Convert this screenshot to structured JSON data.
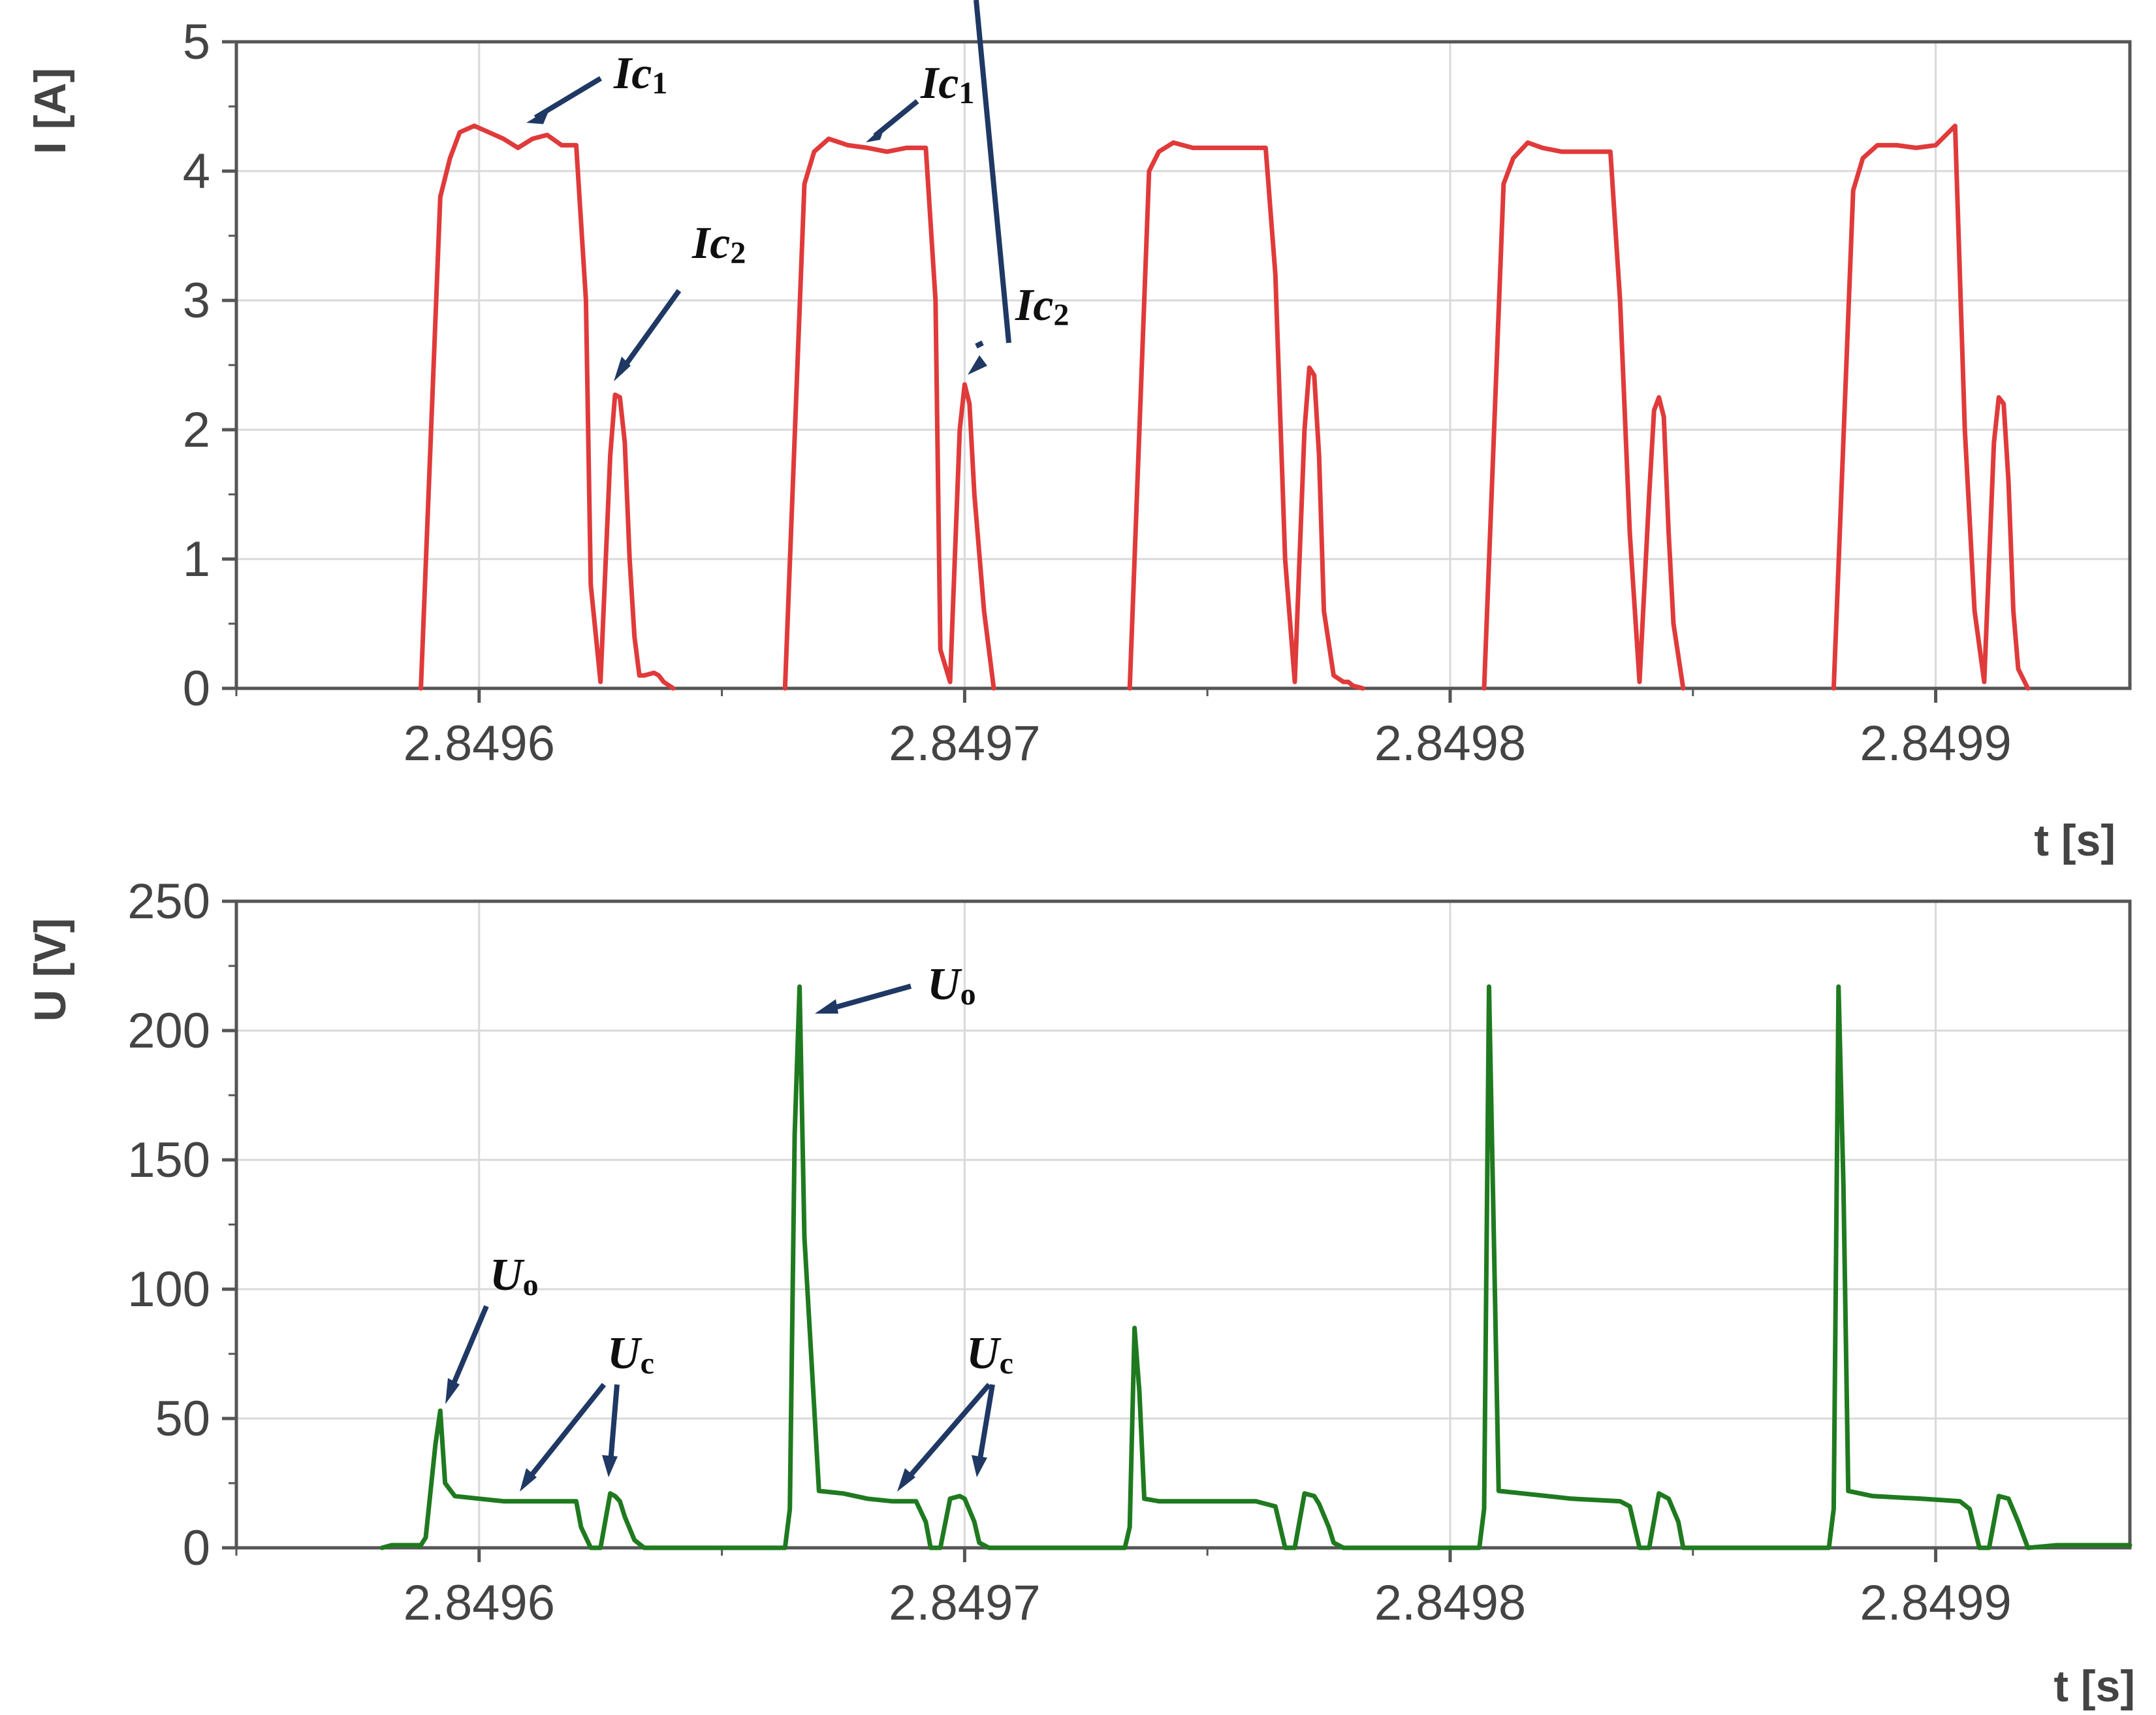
{
  "chart_data": [
    {
      "type": "line",
      "ylabel": "I [A]",
      "xlabel": "t [s]",
      "xlim": [
        2.84955,
        2.84994
      ],
      "ylim": [
        0,
        5
      ],
      "grid": true,
      "x_ticks": [
        "2.8496",
        "2.8497",
        "2.8498",
        "2.8499"
      ],
      "y_ticks": [
        "0",
        "1",
        "2",
        "3",
        "4",
        "5"
      ],
      "colors": {
        "series": "#e03a3a"
      },
      "series": [
        {
          "x": [
            2.849588,
            2.849592,
            2.849594,
            2.849596,
            2.849599,
            2.849602,
            2.849605,
            2.849608,
            2.849611,
            2.849614,
            2.849617,
            2.84962,
            2.849622,
            2.849623,
            2.849625,
            2.849627,
            2.849628,
            2.849629,
            2.84963,
            2.849631,
            2.849632,
            2.849633,
            2.849634,
            2.849636,
            2.849637,
            2.849638,
            2.84964,
            2.849663,
            2.849667,
            2.849669,
            2.849672,
            2.849676,
            2.84968,
            2.849684,
            2.849688,
            2.849692,
            2.849694,
            2.849695,
            2.849697,
            2.849699,
            2.8497,
            2.849701,
            2.849702,
            2.849704,
            2.849706,
            2.849734,
            2.849738,
            2.84974,
            2.849743,
            2.849747,
            2.849752,
            2.849757,
            2.849762,
            2.849764,
            2.849766,
            2.849768,
            2.84977,
            2.849771,
            2.849772,
            2.849773,
            2.849774,
            2.849776,
            2.849778,
            2.849779,
            2.84978,
            2.849782,
            2.849807,
            2.849811,
            2.849813,
            2.849816,
            2.849819,
            2.849823,
            2.849828,
            2.849833,
            2.849835,
            2.849837,
            2.849839,
            2.849841,
            2.849842,
            2.849843,
            2.849844,
            2.849845,
            2.849846,
            2.849848,
            2.849879,
            2.849883,
            2.849885,
            2.849888,
            2.849892,
            2.849896,
            2.8499,
            2.849904,
            2.849906,
            2.849908,
            2.84991,
            2.849912,
            2.849913,
            2.849914,
            2.849915,
            2.849916,
            2.849917,
            2.849919
          ],
          "y": [
            0,
            3.8,
            4.1,
            4.3,
            4.35,
            4.3,
            4.25,
            4.18,
            4.25,
            4.28,
            4.2,
            4.2,
            3.0,
            0.8,
            0.05,
            1.8,
            2.27,
            2.25,
            1.9,
            1.0,
            0.4,
            0.1,
            0.1,
            0.12,
            0.1,
            0.05,
            0,
            0,
            3.9,
            4.15,
            4.25,
            4.2,
            4.18,
            4.15,
            4.18,
            4.18,
            3.0,
            0.3,
            0.05,
            2.0,
            2.35,
            2.2,
            1.5,
            0.6,
            0,
            0,
            4.0,
            4.15,
            4.22,
            4.18,
            4.18,
            4.18,
            4.18,
            3.2,
            1.0,
            0.05,
            2.0,
            2.48,
            2.42,
            1.8,
            0.6,
            0.1,
            0.05,
            0.05,
            0.02,
            0,
            0,
            3.9,
            4.1,
            4.22,
            4.18,
            4.15,
            4.15,
            4.15,
            3.0,
            1.2,
            0.05,
            1.5,
            2.15,
            2.25,
            2.1,
            1.2,
            0.5,
            0,
            0,
            3.85,
            4.1,
            4.2,
            4.2,
            4.18,
            4.2,
            4.35,
            2.0,
            0.6,
            0.05,
            1.9,
            2.25,
            2.2,
            1.6,
            0.6,
            0.15,
            0
          ]
        }
      ],
      "annotations": [
        {
          "label": "Ic",
          "subscript": "1"
        },
        {
          "label": "Ic",
          "subscript": "1"
        },
        {
          "label": "Ic",
          "subscript": "2"
        },
        {
          "label": "Ic",
          "subscript": "2"
        }
      ]
    },
    {
      "type": "line",
      "ylabel": "U [V]",
      "xlabel": "t [s]",
      "xlim": [
        2.84955,
        2.84994
      ],
      "ylim": [
        0,
        250
      ],
      "grid": true,
      "x_ticks": [
        "2.8496",
        "2.8497",
        "2.8498",
        "2.8499"
      ],
      "y_ticks": [
        "0",
        "50",
        "100",
        "150",
        "200",
        "250"
      ],
      "colors": {
        "series": "#1f7a1f"
      },
      "series": [
        {
          "x": [
            2.84958,
            2.849582,
            2.849583,
            2.849588,
            2.849589,
            2.849591,
            2.849592,
            2.849593,
            2.849595,
            2.8496,
            2.849605,
            2.84961,
            2.849615,
            2.84962,
            2.849621,
            2.849623,
            2.849625,
            2.849627,
            2.849628,
            2.849629,
            2.84963,
            2.849632,
            2.849634,
            2.849636,
            2.849663,
            2.849664,
            2.849665,
            2.849666,
            2.849667,
            2.84967,
            2.849675,
            2.84968,
            2.849685,
            2.84969,
            2.849692,
            2.849693,
            2.849695,
            2.849697,
            2.849699,
            2.8497,
            2.849702,
            2.849703,
            2.849705,
            2.849733,
            2.849734,
            2.849735,
            2.849736,
            2.849737,
            2.84974,
            2.84975,
            2.84976,
            2.849764,
            2.849766,
            2.849768,
            2.84977,
            2.849772,
            2.849773,
            2.849775,
            2.849776,
            2.849778,
            2.849806,
            2.849807,
            2.849808,
            2.849809,
            2.84981,
            2.849815,
            2.849825,
            2.849835,
            2.849837,
            2.849839,
            2.849841,
            2.849843,
            2.849845,
            2.849847,
            2.849848,
            2.849878,
            2.849879,
            2.84988,
            2.849881,
            2.849882,
            2.849887,
            2.849897,
            2.849905,
            2.849907,
            2.849909,
            2.849911,
            2.849913,
            2.849915,
            2.849917,
            2.849919,
            2.849925,
            2.849935,
            2.84994
          ],
          "y": [
            0,
            1,
            1,
            1,
            4,
            40,
            53,
            25,
            20,
            19,
            18,
            18,
            18,
            18,
            8,
            0,
            0,
            21,
            20,
            18,
            12,
            3,
            0,
            0,
            0,
            15,
            160,
            217,
            120,
            22,
            21,
            19,
            18,
            18,
            10,
            0,
            0,
            19,
            20,
            19,
            10,
            2,
            0,
            0,
            8,
            85,
            60,
            19,
            18,
            18,
            18,
            16,
            0,
            0,
            21,
            20,
            17,
            8,
            2,
            0,
            0,
            15,
            217,
            120,
            22,
            21,
            19,
            18,
            16,
            0,
            0,
            21,
            19,
            10,
            0,
            0,
            15,
            217,
            140,
            22,
            20,
            19,
            18,
            15,
            0,
            0,
            20,
            19,
            10,
            0,
            1,
            1,
            1
          ]
        }
      ],
      "annotations": [
        {
          "label": "U",
          "subscript": "o"
        },
        {
          "label": "U",
          "subscript": "o"
        },
        {
          "label": "U",
          "subscript": "c"
        },
        {
          "label": "U",
          "subscript": "c"
        }
      ]
    }
  ]
}
